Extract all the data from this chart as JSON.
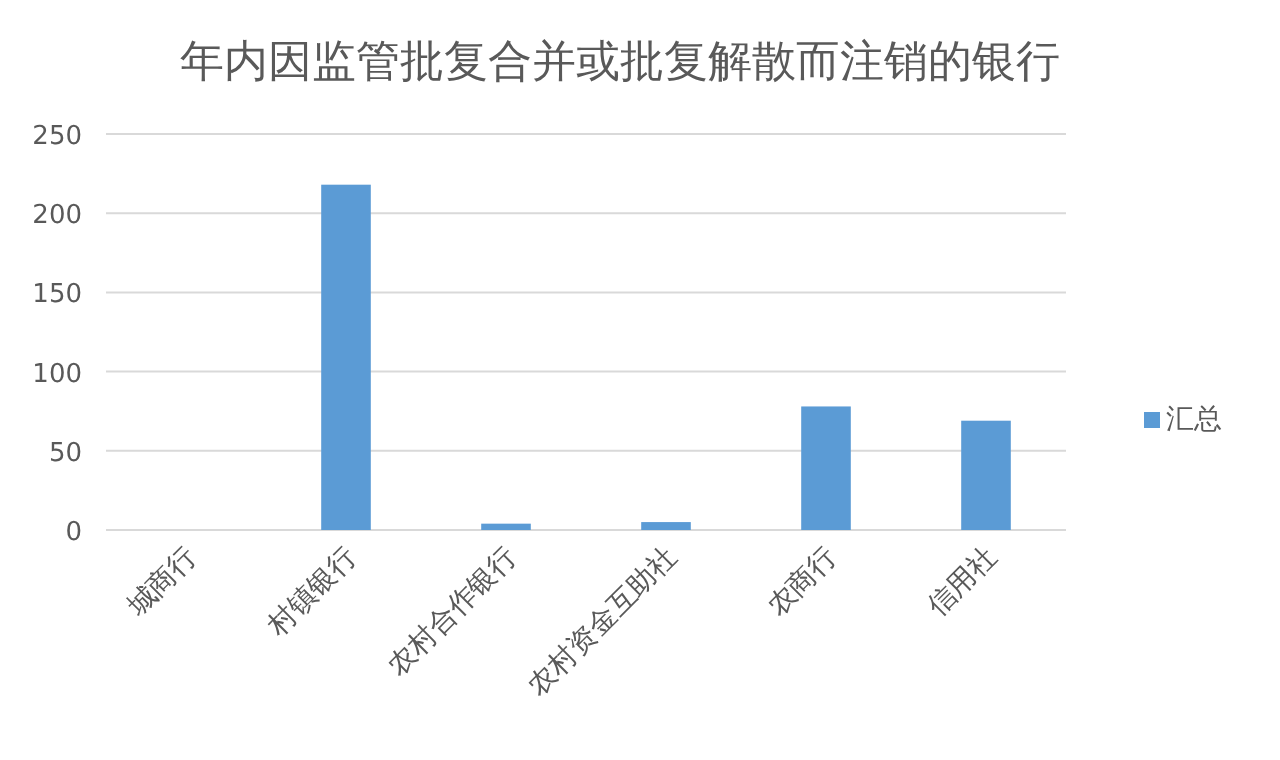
{
  "chart_data": {
    "type": "bar",
    "title": "年内因监管批复合并或批复解散而注销的银行",
    "categories": [
      "城商行",
      "村镇银行",
      "农村合作银行",
      "农村资金互助社",
      "农商行",
      "信用社"
    ],
    "series": [
      {
        "name": "汇总",
        "color": "#5b9bd5",
        "values": [
          0,
          218,
          4,
          5,
          78,
          69
        ]
      }
    ],
    "ylim": [
      0,
      250
    ],
    "yticks": [
      0,
      50,
      100,
      150,
      200,
      250
    ],
    "grid": "y",
    "legend": "right"
  }
}
